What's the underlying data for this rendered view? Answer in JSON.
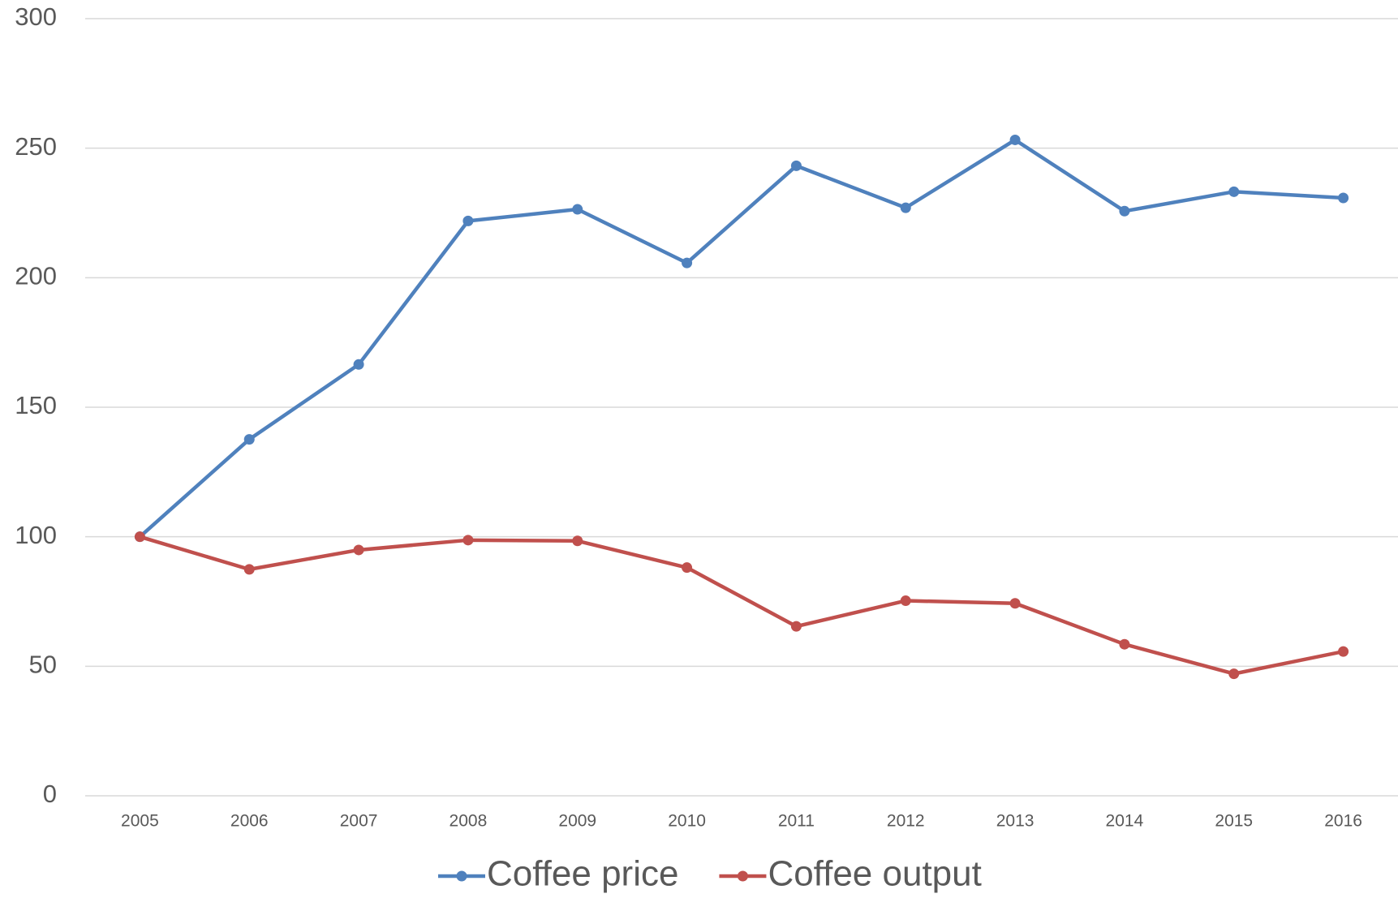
{
  "chart_data": {
    "type": "line",
    "categories": [
      "2005",
      "2006",
      "2007",
      "2008",
      "2009",
      "2010",
      "2011",
      "2012",
      "2013",
      "2014",
      "2015",
      "2016"
    ],
    "series": [
      {
        "name": "Coffee price",
        "color": "#4f81bd",
        "values": [
          100,
          137.6,
          166.5,
          221.9,
          226.4,
          205.7,
          243.2,
          227,
          253.2,
          225.7,
          233.2,
          230.8
        ]
      },
      {
        "name": "Coffee output",
        "color": "#c0504d",
        "values": [
          100,
          87.4,
          94.9,
          98.7,
          98.4,
          88.1,
          65.4,
          75.3,
          74.3,
          58.5,
          47.1,
          55.7
        ]
      }
    ],
    "ylim": [
      0,
      300
    ],
    "yticks": [
      0,
      50,
      100,
      150,
      200,
      250,
      300
    ],
    "grid": true,
    "legend": "bottom"
  }
}
